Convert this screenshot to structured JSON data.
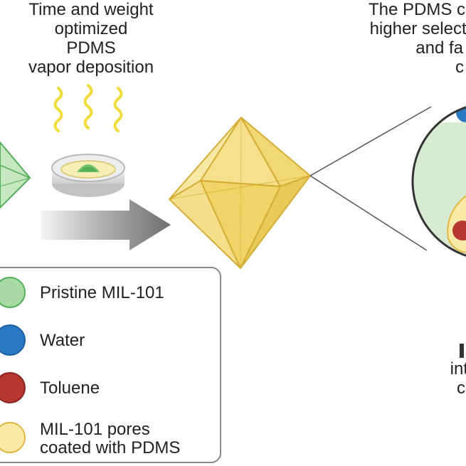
{
  "process_text": [
    "Time and weight",
    "optimized",
    "PDMS",
    "vapor deposition"
  ],
  "result_text": [
    "The PDMS c",
    "higher selecti",
    "and fa",
    "c"
  ],
  "bottom_right_text": [
    "",
    "int",
    "c"
  ],
  "legend": {
    "items": [
      {
        "name": "pristine",
        "label_lines": [
          "Pristine MIL-101"
        ],
        "color": "#a8dba4",
        "border": "#4fae57"
      },
      {
        "name": "water",
        "label_lines": [
          "Water"
        ],
        "color": "#2a78c2",
        "border": "#1b5fa4"
      },
      {
        "name": "toluene",
        "label_lines": [
          "Toluene"
        ],
        "color": "#b53730",
        "border": "#8c2320"
      },
      {
        "name": "pdms-pores",
        "label_lines": [
          "MIL-101 pores",
          "coated with PDMS"
        ],
        "color": "#fbe9a8",
        "border": "#e3b640"
      }
    ]
  },
  "colors": {
    "octahedron_fill": "#f7e39a",
    "octahedron_stroke": "#d7b23a",
    "green_octahedron": "#bfe3b8",
    "arrow_gradient_start": "#f2f2f2",
    "arrow_gradient_end": "#707070",
    "vapor_wave": "#f2df3c",
    "zoom_fill": "#d3ead0"
  }
}
